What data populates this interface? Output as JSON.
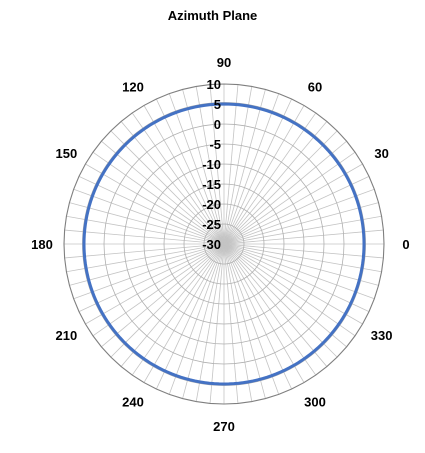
{
  "chart_data": {
    "type": "line",
    "subtype": "polar-radar",
    "title": "Azimuth Plane",
    "angle_labels": [
      "0",
      "30",
      "60",
      "90",
      "120",
      "150",
      "180",
      "210",
      "240",
      "270",
      "300",
      "330"
    ],
    "angle_label_degrees": [
      0,
      30,
      60,
      90,
      120,
      150,
      180,
      210,
      240,
      270,
      300,
      330
    ],
    "radial_labels": [
      "-30",
      "-25",
      "-20",
      "-15",
      "-10",
      "-5",
      "0",
      "5",
      "10"
    ],
    "radial_range": [
      -30,
      10
    ],
    "radial_step": 5,
    "angular_step_degrees": 5,
    "grid": true,
    "series": [
      {
        "color": "#4472c4",
        "angle_degrees": [
          0,
          30,
          60,
          90,
          120,
          150,
          180,
          210,
          240,
          270,
          300,
          330
        ],
        "values": [
          5,
          5,
          5,
          5,
          5,
          5,
          5,
          5,
          5,
          5,
          5,
          5
        ]
      },
      {
        "color": "#a6a6a6",
        "angle_degrees": [
          0,
          30,
          60,
          90,
          120,
          150,
          180,
          210,
          240,
          270,
          300,
          330
        ],
        "values": [
          5.3,
          5.3,
          5.3,
          5.3,
          5.3,
          5.3,
          5.3,
          5.3,
          5.3,
          5.3,
          5.3,
          5.3
        ]
      }
    ]
  },
  "colors": {
    "grid": "#b0b0b0",
    "spoke": "#c4c4c4",
    "outer": "#7f7f7f",
    "series_main": "#4472c4",
    "series_secondary": "#a6a6a6"
  }
}
